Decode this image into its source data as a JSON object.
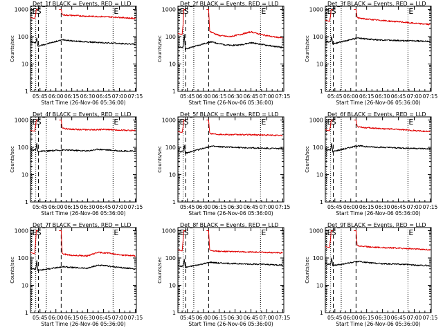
{
  "figure": {
    "x_tick_labels": [
      "05:45",
      "06:00",
      "06:15",
      "06:30",
      "06:45",
      "07:00",
      "07:15"
    ],
    "x_tick_values_min": [
      345,
      360,
      375,
      390,
      405,
      420,
      435
    ],
    "y_tick_labels": [
      "1",
      "10",
      "100",
      "1000"
    ],
    "y_tick_values": [
      1,
      10,
      100,
      1000
    ],
    "xlabel": "Start Time (26-Nov-06 05:36:00)",
    "ylabel": "Counts/sec",
    "xlim_min": [
      336,
      436
    ],
    "ylim": [
      1,
      1300
    ],
    "y_scale": "log",
    "markers": [
      {
        "label": "E",
        "x_min": 337,
        "style": "dotted"
      },
      {
        "label": "S",
        "x_min": 341,
        "style": "dotted"
      },
      {
        "label": "",
        "x_min": 343.5,
        "style": "dashed"
      },
      {
        "label": "",
        "x_min": 351,
        "style": "dotted"
      },
      {
        "label": "",
        "x_min": 365,
        "style": "dashed"
      },
      {
        "label": "E",
        "x_min": 414,
        "style": "dotted"
      }
    ],
    "colors": {
      "events": "#000000",
      "lld": "#e00000",
      "axes": "#000000",
      "background": "#ffffff"
    }
  },
  "chart_data": [
    {
      "type": "line",
      "title": "Det_1f BLACK = Events, RED = LLD",
      "series": [
        {
          "name": "Events",
          "color": "#000000",
          "x": [
            336,
            338,
            341,
            342,
            343,
            367,
            375,
            390,
            405,
            420,
            435
          ],
          "y": [
            70,
            62,
            60,
            90,
            45,
            78,
            70,
            64,
            60,
            56,
            53
          ]
        },
        {
          "name": "LLD",
          "color": "#e00000",
          "x": [
            336,
            338,
            340,
            341,
            341.5,
            343,
            344,
            352,
            362,
            363,
            364,
            365,
            366,
            367,
            375,
            390,
            405,
            420,
            435
          ],
          "y": [
            500,
            480,
            460,
            640,
            1000,
            1000,
            null,
            null,
            null,
            1000,
            1000,
            1000,
            660,
            620,
            600,
            560,
            540,
            510,
            460
          ]
        }
      ]
    },
    {
      "type": "line",
      "title": "Det_2f BLACK = Events, RED = LLD",
      "series": [
        {
          "name": "Events",
          "color": "#000000",
          "x": [
            336,
            338,
            341,
            342,
            343,
            367,
            375,
            385,
            395,
            405,
            415,
            425,
            435
          ],
          "y": [
            45,
            40,
            42,
            120,
            35,
            65,
            55,
            48,
            50,
            60,
            52,
            45,
            40
          ]
        },
        {
          "name": "LLD",
          "color": "#e00000",
          "x": [
            336,
            338,
            340,
            341,
            341.5,
            343,
            344,
            352,
            362,
            363,
            364,
            365,
            366,
            367,
            375,
            385,
            395,
            405,
            415,
            425,
            435
          ],
          "y": [
            130,
            125,
            120,
            300,
            1000,
            1000,
            null,
            null,
            null,
            1000,
            1000,
            1000,
            160,
            150,
            110,
            100,
            120,
            150,
            120,
            100,
            90
          ]
        }
      ]
    },
    {
      "type": "line",
      "title": "Det_3f BLACK = Events, RED = LLD",
      "series": [
        {
          "name": "Events",
          "color": "#000000",
          "x": [
            336,
            338,
            341,
            342,
            343,
            367,
            375,
            390,
            405,
            420,
            435
          ],
          "y": [
            70,
            65,
            65,
            100,
            55,
            90,
            82,
            75,
            72,
            70,
            68
          ]
        },
        {
          "name": "LLD",
          "color": "#e00000",
          "x": [
            336,
            338,
            340,
            341,
            341.5,
            343,
            344,
            352,
            362,
            363,
            364,
            365,
            366,
            367,
            375,
            390,
            405,
            420,
            435
          ],
          "y": [
            400,
            380,
            360,
            600,
            1000,
            1000,
            null,
            null,
            null,
            1000,
            1000,
            1000,
            520,
            480,
            440,
            390,
            350,
            310,
            280
          ]
        }
      ]
    },
    {
      "type": "line",
      "title": "Det_4f BLACK = Events, RED = LLD",
      "series": [
        {
          "name": "Events",
          "color": "#000000",
          "x": [
            336,
            338,
            341,
            342,
            343,
            367,
            375,
            390,
            400,
            410,
            420,
            435
          ],
          "y": [
            85,
            80,
            80,
            140,
            70,
            80,
            78,
            74,
            85,
            80,
            74,
            72
          ]
        },
        {
          "name": "LLD",
          "color": "#e00000",
          "x": [
            336,
            338,
            340,
            341,
            341.5,
            343,
            344,
            352,
            362,
            363,
            364,
            365,
            366,
            367,
            375,
            390,
            405,
            420,
            435
          ],
          "y": [
            420,
            400,
            390,
            640,
            1000,
            1000,
            null,
            null,
            null,
            1000,
            1000,
            1000,
            520,
            490,
            460,
            440,
            450,
            430,
            410
          ]
        }
      ]
    },
    {
      "type": "line",
      "title": "Det_5f BLACK = Events, RED = LLD",
      "series": [
        {
          "name": "Events",
          "color": "#000000",
          "x": [
            336,
            338,
            341,
            342,
            343,
            367,
            375,
            390,
            405,
            420,
            435
          ],
          "y": [
            75,
            70,
            70,
            120,
            60,
            110,
            105,
            100,
            95,
            92,
            90
          ]
        },
        {
          "name": "LLD",
          "color": "#e00000",
          "x": [
            336,
            338,
            340,
            341,
            341.5,
            343,
            344,
            352,
            362,
            363,
            364,
            365,
            366,
            367,
            375,
            390,
            405,
            420,
            435
          ],
          "y": [
            380,
            360,
            350,
            580,
            1000,
            1000,
            null,
            null,
            null,
            1000,
            1000,
            1000,
            340,
            320,
            300,
            290,
            290,
            280,
            270
          ]
        }
      ]
    },
    {
      "type": "line",
      "title": "Det_6f BLACK = Events, RED = LLD",
      "series": [
        {
          "name": "Events",
          "color": "#000000",
          "x": [
            336,
            338,
            341,
            342,
            343,
            367,
            375,
            390,
            405,
            420,
            435
          ],
          "y": [
            85,
            80,
            80,
            140,
            70,
            115,
            105,
            100,
            95,
            92,
            88
          ]
        },
        {
          "name": "LLD",
          "color": "#e00000",
          "x": [
            336,
            338,
            340,
            341,
            341.5,
            343,
            344,
            352,
            362,
            363,
            364,
            365,
            366,
            367,
            375,
            390,
            405,
            420,
            435
          ],
          "y": [
            440,
            420,
            400,
            640,
            1000,
            1000,
            null,
            null,
            null,
            1000,
            1000,
            1000,
            620,
            560,
            520,
            480,
            450,
            410,
            380
          ]
        }
      ]
    },
    {
      "type": "line",
      "title": "Det_7f BLACK = Events, RED = LLD",
      "series": [
        {
          "name": "Events",
          "color": "#000000",
          "x": [
            336,
            338,
            341,
            342,
            343,
            367,
            375,
            390,
            400,
            410,
            420,
            435
          ],
          "y": [
            45,
            40,
            40,
            80,
            35,
            48,
            45,
            42,
            55,
            50,
            45,
            40
          ]
        },
        {
          "name": "LLD",
          "color": "#e00000",
          "x": [
            336,
            338,
            340,
            341,
            341.5,
            343,
            344,
            352,
            362,
            363,
            364,
            365,
            366,
            367,
            375,
            390,
            400,
            410,
            420,
            435
          ],
          "y": [
            160,
            150,
            140,
            420,
            1000,
            1000,
            null,
            null,
            null,
            1000,
            1000,
            1000,
            150,
            140,
            125,
            120,
            160,
            150,
            130,
            120
          ]
        }
      ]
    },
    {
      "type": "line",
      "title": "Det_8f BLACK = Events, RED = LLD",
      "series": [
        {
          "name": "Events",
          "color": "#000000",
          "x": [
            336,
            338,
            341,
            342,
            343,
            367,
            375,
            390,
            405,
            420,
            435
          ],
          "y": [
            55,
            50,
            50,
            90,
            45,
            70,
            65,
            62,
            60,
            58,
            55
          ]
        },
        {
          "name": "LLD",
          "color": "#e00000",
          "x": [
            336,
            338,
            340,
            341,
            341.5,
            343,
            344,
            352,
            362,
            363,
            364,
            365,
            366,
            367,
            375,
            390,
            405,
            420,
            435
          ],
          "y": [
            200,
            190,
            180,
            480,
            1000,
            1000,
            null,
            null,
            null,
            1000,
            1000,
            1000,
            200,
            190,
            175,
            170,
            165,
            160,
            155
          ]
        }
      ]
    },
    {
      "type": "line",
      "title": "Det_9f BLACK = Events, RED = LLD",
      "series": [
        {
          "name": "Events",
          "color": "#000000",
          "x": [
            336,
            338,
            341,
            342,
            343,
            367,
            375,
            390,
            405,
            420,
            435
          ],
          "y": [
            65,
            60,
            60,
            100,
            52,
            75,
            68,
            62,
            60,
            55,
            52
          ]
        },
        {
          "name": "LLD",
          "color": "#e00000",
          "x": [
            336,
            338,
            340,
            341,
            341.5,
            343,
            344,
            352,
            362,
            363,
            364,
            365,
            366,
            367,
            375,
            390,
            405,
            420,
            435
          ],
          "y": [
            260,
            250,
            240,
            520,
            1000,
            1000,
            null,
            null,
            null,
            1000,
            1000,
            1000,
            300,
            280,
            260,
            240,
            230,
            215,
            200
          ]
        }
      ]
    }
  ]
}
